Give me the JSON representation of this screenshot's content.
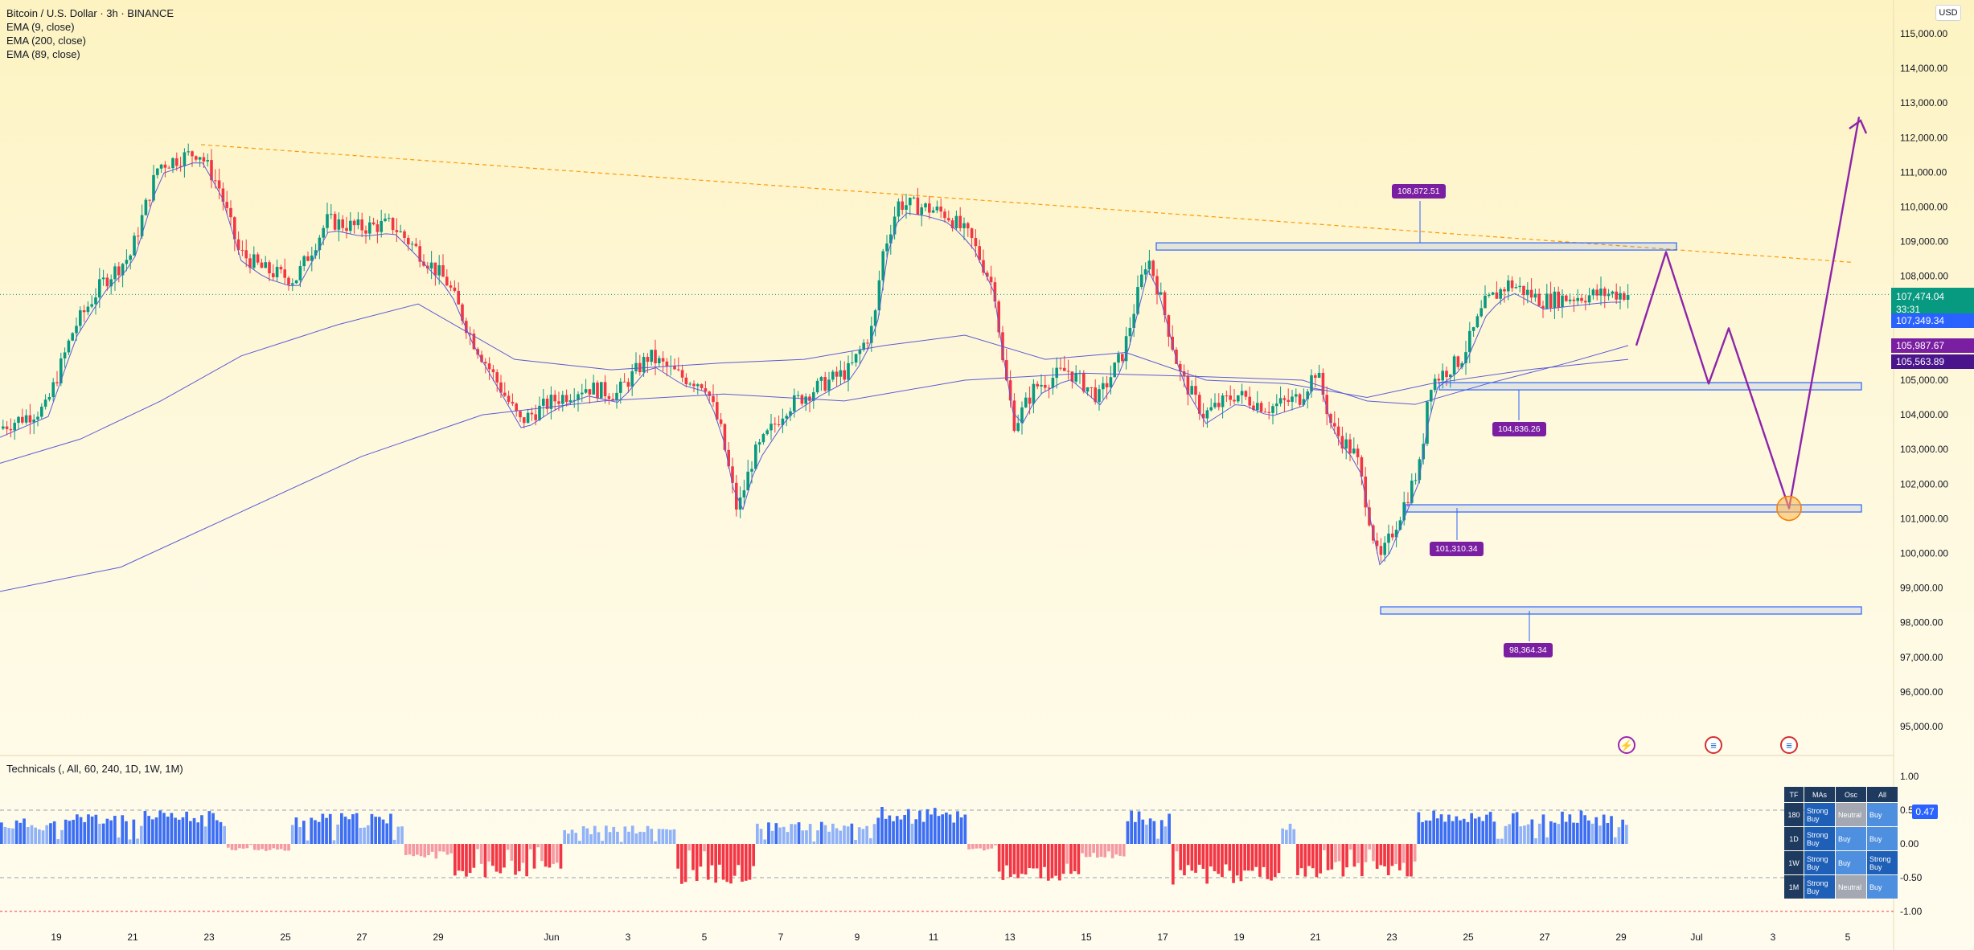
{
  "legend": {
    "title": "Bitcoin / U.S. Dollar · 3h · BINANCE",
    "ema1": "EMA (9, close)",
    "ema2": "EMA (200, close)",
    "ema3": "EMA (89, close)"
  },
  "currency_button": "USD",
  "price_axis": {
    "ticks": [
      "115,000.00",
      "114,000.00",
      "113,000.00",
      "112,000.00",
      "111,000.00",
      "110,000.00",
      "109,000.00",
      "108,000.00",
      "107,000.00",
      "106,000.00",
      "105,000.00",
      "104,000.00",
      "103,000.00",
      "102,000.00",
      "101,000.00",
      "100,000.00",
      "99,000.00",
      "98,000.00",
      "97,000.00",
      "96,000.00",
      "95,000.00"
    ],
    "current_price": "107,474.04",
    "countdown": "33:31",
    "tag_blue": "107,349.34",
    "tag_purple1": "105,987.67",
    "tag_purple2": "105,563.89"
  },
  "time_axis": {
    "labels": [
      "19",
      "21",
      "23",
      "25",
      "27",
      "29",
      "Jun",
      "3",
      "5",
      "7",
      "9",
      "11",
      "13",
      "15",
      "17",
      "19",
      "21",
      "23",
      "25",
      "27",
      "29",
      "Jul",
      "3",
      "5"
    ]
  },
  "annotations": {
    "level1": "108,872.51",
    "level2": "104,836.26",
    "level3": "101,310.34",
    "level4": "98,364.34"
  },
  "technicals": {
    "label": "Technicals (, All, 60, 240, 1D, 1W, 1M)",
    "axis": [
      "1.00",
      "0.50",
      "0.00",
      "-0.50",
      "-1.00"
    ],
    "current": "0.47",
    "table": {
      "headers": [
        "TF",
        "MAs",
        "Osc",
        "All"
      ],
      "rows": [
        {
          "tf": "180",
          "mas": "Strong Buy",
          "osc": "Neutral",
          "all": "Buy"
        },
        {
          "tf": "1D",
          "mas": "Strong Buy",
          "osc": "Buy",
          "all": "Buy"
        },
        {
          "tf": "1W",
          "mas": "Strong Buy",
          "osc": "Buy",
          "all": "Strong Buy"
        },
        {
          "tf": "1M",
          "mas": "Strong Buy",
          "osc": "Neutral",
          "all": "Buy"
        }
      ]
    }
  },
  "colors": {
    "up": "#089981",
    "down": "#f23645",
    "ema": "#5b5bd6",
    "projection": "#8e24aa",
    "zone": "#2962ff",
    "trendline": "#ff9800"
  }
}
